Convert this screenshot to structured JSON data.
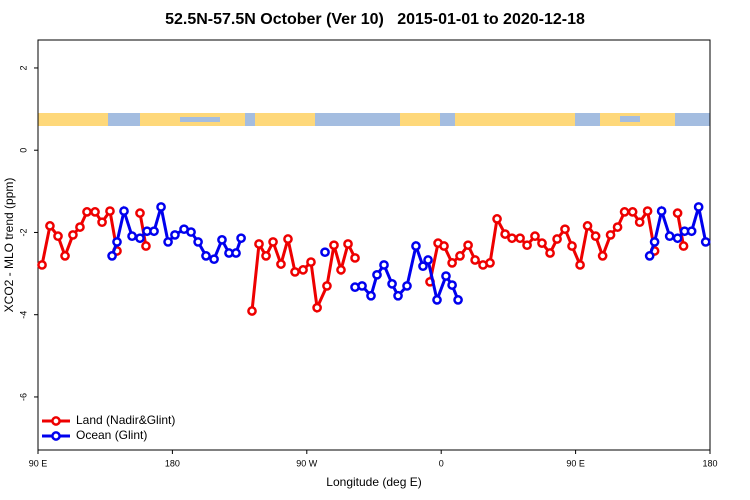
{
  "chart_data": {
    "type": "line",
    "title": "52.5N-57.5N October (Ver 10)   2015-01-01 to 2020-12-18",
    "xlabel": "Longitude (deg E)",
    "ylabel": "XCO2 - MLO trend (ppm)",
    "xlim": [
      90,
      540
    ],
    "ylim": [
      -7.29,
      2.68
    ],
    "xticks": [
      {
        "value": 90,
        "label": "90 E"
      },
      {
        "value": 180,
        "label": "180"
      },
      {
        "value": 270,
        "label": "90 W"
      },
      {
        "value": 360,
        "label": "0"
      },
      {
        "value": 450,
        "label": "90 E"
      },
      {
        "value": 540,
        "label": "180"
      }
    ],
    "yticks": [
      -6,
      -4,
      -2,
      0,
      2
    ],
    "legend": "bottom-left",
    "series": [
      {
        "name": "Land (Nadir&Glint)",
        "color": "#ee0000",
        "x": [
          92.7,
          98.0,
          103.4,
          108.1,
          113.4,
          118.1,
          122.8,
          128.2,
          132.9,
          138.2,
          142.9,
          null,
          158.3,
          162.3,
          null,
          233.3,
          238.0,
          242.7,
          247.4,
          252.7,
          257.4,
          262.1,
          267.5,
          272.8,
          276.9,
          283.5,
          288.2,
          292.9,
          297.6,
          302.3,
          null,
          352.5,
          357.9,
          361.9,
          367.3,
          372.6,
          378.0,
          382.7,
          388.0,
          392.7,
          397.4,
          402.8,
          407.4,
          412.8,
          417.5,
          422.8,
          427.5,
          432.9,
          437.6,
          442.9,
          447.6,
          453.0,
          458.0,
          463.4,
          468.1,
          473.4,
          478.1,
          482.8,
          488.2,
          492.9,
          498.2,
          502.9,
          null,
          518.3,
          522.3
        ],
        "values": [
          -2.79,
          -1.84,
          -2.09,
          -2.57,
          -2.06,
          -1.87,
          -1.5,
          -1.5,
          -1.75,
          -1.48,
          -2.45,
          null,
          -1.53,
          -2.33,
          null,
          -3.91,
          -2.28,
          -2.57,
          -2.23,
          -2.77,
          -2.16,
          -2.96,
          -2.91,
          -2.72,
          -3.83,
          -3.3,
          -2.31,
          -2.91,
          -2.28,
          -2.62,
          null,
          -3.2,
          -2.26,
          -2.33,
          -2.74,
          -2.57,
          -2.31,
          -2.67,
          -2.79,
          -2.74,
          -1.67,
          -2.04,
          -2.14,
          -2.14,
          -2.31,
          -2.09,
          -2.26,
          -2.5,
          -2.16,
          -1.92,
          -2.33,
          -2.79,
          -1.84,
          -2.09,
          -2.57,
          -2.06,
          -1.87,
          -1.5,
          -1.5,
          -1.75,
          -1.48,
          -2.45,
          null,
          -1.53,
          -2.33
        ]
      },
      {
        "name": "Ocean (Glint)",
        "color": "#0000ee",
        "x": [
          139.6,
          142.9,
          147.6,
          153.0,
          158.3,
          163.0,
          167.7,
          172.4,
          177.1,
          181.7,
          187.8,
          192.5,
          197.2,
          202.5,
          207.9,
          213.2,
          217.9,
          222.6,
          226.0,
          null,
          282.2,
          null,
          302.3,
          307.0,
          313.0,
          317.0,
          321.7,
          327.1,
          331.1,
          337.1,
          343.1,
          347.8,
          351.2,
          357.2,
          363.2,
          367.3,
          371.3,
          null,
          499.6,
          502.9,
          507.6,
          513.0,
          518.3,
          523.0,
          527.7,
          532.4,
          537.1
        ],
        "values": [
          -2.57,
          -2.23,
          -1.48,
          -2.09,
          -2.14,
          -1.97,
          -1.97,
          -1.38,
          -2.23,
          -2.06,
          -1.92,
          -1.99,
          -2.23,
          -2.57,
          -2.65,
          -2.18,
          -2.5,
          -2.5,
          -2.14,
          null,
          -2.48,
          null,
          -3.33,
          -3.3,
          -3.54,
          -3.03,
          -2.79,
          -3.25,
          -3.54,
          -3.3,
          -2.33,
          -2.82,
          -2.67,
          -3.64,
          -3.06,
          -3.28,
          -3.64,
          null,
          -2.57,
          -2.23,
          -1.48,
          -2.09,
          -2.14,
          -1.97,
          -1.97,
          -1.38,
          -2.23
        ]
      }
    ]
  }
}
